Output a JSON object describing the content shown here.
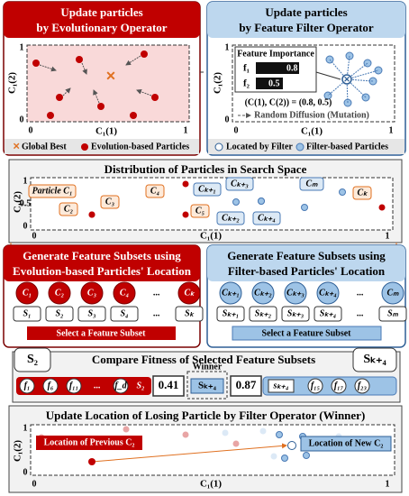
{
  "evolution": {
    "title": [
      "Update particles",
      "by Evolutionary Operator"
    ],
    "y_label": "C₁(2)",
    "x_label": "C₁(1)",
    "y_ticks": [
      "1",
      "0"
    ],
    "x_ticks": [
      "0",
      "1"
    ],
    "legend": [
      "Global Best",
      "Evolution-based Particles"
    ]
  },
  "filter": {
    "title": [
      "Update particles",
      "by Feature Filter Operator"
    ],
    "importance_title": "Feature Importance",
    "importance": [
      {
        "feature": "f₁",
        "value": "0.8"
      },
      {
        "feature": "f₂",
        "value": "0.5"
      }
    ],
    "equation": "(C(1), C(2)) = (0.8, 0.5)",
    "diffusion": "Random Diffusion (Mutation)",
    "y_label": "C₁(2)",
    "x_label": "C₁(1)",
    "y_ticks": [
      "1",
      "0"
    ],
    "x_ticks": [
      "0",
      "1"
    ],
    "legend": [
      "Located by Filter",
      "Filter-based Particles"
    ]
  },
  "distribution": {
    "title": "Distribution of Particles in Search Space",
    "y_label": "C₁(2)",
    "x_label": "C₁(1)",
    "y_ticks": [
      "1",
      "0.5",
      "0"
    ],
    "x_ticks": [
      "0",
      "1"
    ],
    "labels": [
      "Particle C₁",
      "C₂",
      "C₃",
      "C₄",
      "C₅",
      "Cₖ₊₁",
      "Cₖ₊₃",
      "Cₖ₊₂",
      "Cₖ₊₄",
      "Cₘ",
      "Cₖ"
    ]
  },
  "generate_evolution": {
    "title": [
      "Generate Feature Subsets using",
      "Evolution-based Particles' Location"
    ],
    "particles": [
      "C₁",
      "C₂",
      "C₃",
      "C₄",
      "...",
      "Cₖ"
    ],
    "subsets": [
      "S₁",
      "S₂",
      "S₃",
      "S₄",
      "...",
      "Sₖ"
    ],
    "select": "Select a Feature Subset"
  },
  "generate_filter": {
    "title": [
      "Generate Feature Subsets using",
      "Filter-based Particles' Location"
    ],
    "particles": [
      "Cₖ₊₁",
      "Cₖ₊₂",
      "Cₖ₊₃",
      "Cₖ₊₄",
      "...",
      "Cₘ"
    ],
    "subsets": [
      "Sₖ₊₁",
      "Sₖ₊₂",
      "Sₖ₊₃",
      "Sₖ₊₄",
      "...",
      "Sₘ"
    ],
    "select": "Select a Feature Subset"
  },
  "compare": {
    "title": "Compare Fitness of Selected Feature Subsets",
    "left_subset": "S₂",
    "right_subset": "Sₖ₊₄",
    "left_features": [
      "f₁",
      "f₆",
      "f₁₁",
      "...",
      "f_d"
    ],
    "left_label": "S₂",
    "left_fitness": "0.41",
    "winner": "Winner",
    "winner_subset": "Sₖ₊₄",
    "right_fitness": "0.87",
    "right_label": "sₖ₊₄",
    "right_features": [
      "f₁₅",
      "f₁₇",
      "f₂₃"
    ]
  },
  "update": {
    "title": "Update Location of Losing Particle by Filter Operator (Winner)",
    "previous": "Location of Previous C₂",
    "new": "Location of New C₂",
    "y_label": "C₁(2)",
    "x_label": "C₁(1)",
    "y_ticks": [
      "1",
      "0"
    ],
    "x_ticks": [
      "0",
      "1"
    ]
  }
}
